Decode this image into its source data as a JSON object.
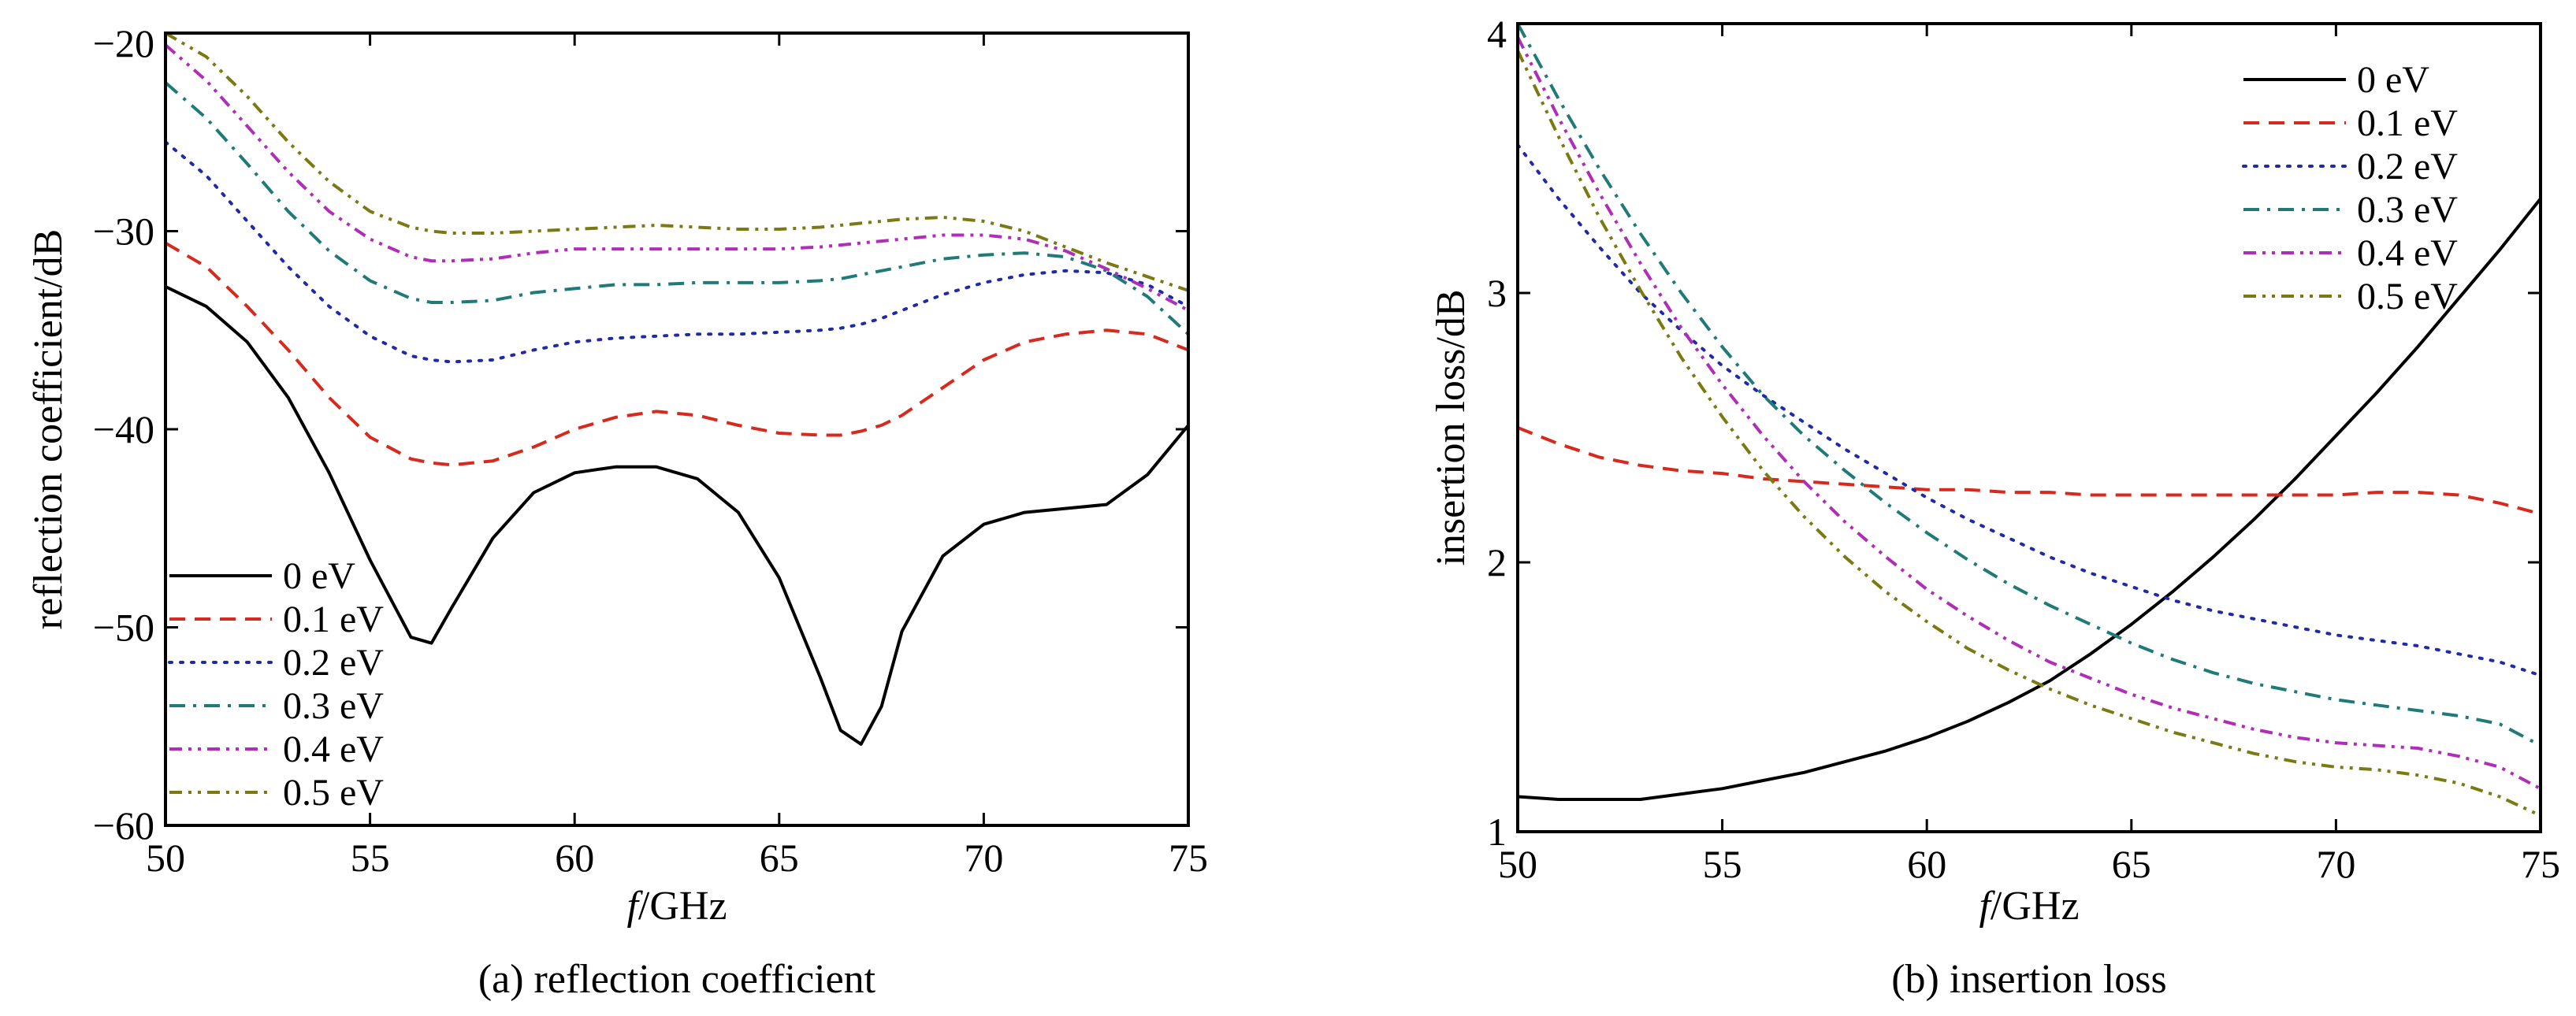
{
  "chart_data": [
    {
      "type": "line",
      "caption": "(a) reflection coefficient",
      "xlabel_italic": "f",
      "xlabel_rest": "/GHz",
      "ylabel": "reflection coefficient/dB",
      "xlim": [
        50,
        75
      ],
      "ylim": [
        -60,
        -20
      ],
      "xticks": [
        50,
        55,
        60,
        65,
        70,
        75
      ],
      "xtick_labels": [
        "50",
        "55",
        "60",
        "65",
        "70",
        "75"
      ],
      "yticks": [
        -60,
        -50,
        -40,
        -30,
        -20
      ],
      "ytick_labels": [
        "−60",
        "−50",
        "−40",
        "−30",
        "−20"
      ],
      "grid": false,
      "legend_position": "bottom-left",
      "x": [
        50,
        51,
        52,
        53,
        54,
        55,
        56,
        56.5,
        57,
        58,
        59,
        60,
        61,
        62,
        63,
        64,
        65,
        66,
        66.5,
        67,
        67.5,
        68,
        69,
        70,
        71,
        72,
        73,
        74,
        75
      ],
      "series": [
        {
          "name": "0 eV",
          "color": "#000000",
          "dash": "solid",
          "values": [
            -32.8,
            -33.8,
            -35.6,
            -38.4,
            -42.2,
            -46.6,
            -50.5,
            -50.8,
            -49.0,
            -45.5,
            -43.2,
            -42.2,
            -41.9,
            -41.9,
            -42.5,
            -44.2,
            -47.5,
            -52.5,
            -55.2,
            -55.9,
            -54.0,
            -50.2,
            -46.4,
            -44.8,
            -44.2,
            -44.0,
            -43.8,
            -42.3,
            -39.8
          ]
        },
        {
          "name": "0.1 eV",
          "color": "#d62a1e",
          "dash": "dashed",
          "values": [
            -30.6,
            -31.8,
            -33.8,
            -36.0,
            -38.4,
            -40.4,
            -41.5,
            -41.7,
            -41.8,
            -41.6,
            -40.9,
            -40.0,
            -39.4,
            -39.1,
            -39.3,
            -39.8,
            -40.2,
            -40.3,
            -40.3,
            -40.1,
            -39.8,
            -39.3,
            -37.9,
            -36.5,
            -35.6,
            -35.2,
            -35.0,
            -35.2,
            -36.0
          ]
        },
        {
          "name": "0.2 eV",
          "color": "#1f2aa8",
          "dash": "dotted",
          "values": [
            -25.5,
            -27.2,
            -29.5,
            -31.8,
            -33.8,
            -35.3,
            -36.3,
            -36.5,
            -36.6,
            -36.5,
            -36.0,
            -35.6,
            -35.4,
            -35.3,
            -35.2,
            -35.2,
            -35.1,
            -35.0,
            -34.9,
            -34.7,
            -34.4,
            -34.0,
            -33.2,
            -32.6,
            -32.2,
            -32.0,
            -32.1,
            -32.7,
            -33.8
          ]
        },
        {
          "name": "0.3 eV",
          "color": "#1f7a78",
          "dash": "dashdot",
          "values": [
            -22.5,
            -24.3,
            -26.6,
            -29.0,
            -31.0,
            -32.5,
            -33.4,
            -33.6,
            -33.6,
            -33.5,
            -33.1,
            -32.9,
            -32.7,
            -32.7,
            -32.6,
            -32.6,
            -32.6,
            -32.5,
            -32.4,
            -32.2,
            -32.0,
            -31.8,
            -31.4,
            -31.2,
            -31.1,
            -31.3,
            -32.0,
            -33.3,
            -35.2
          ]
        },
        {
          "name": "0.4 eV",
          "color": "#b02db8",
          "dash": "dashdotdot",
          "values": [
            -20.6,
            -22.4,
            -24.7,
            -27.0,
            -29.0,
            -30.4,
            -31.3,
            -31.5,
            -31.5,
            -31.4,
            -31.1,
            -30.9,
            -30.9,
            -30.9,
            -30.9,
            -30.9,
            -30.9,
            -30.8,
            -30.7,
            -30.6,
            -30.5,
            -30.4,
            -30.2,
            -30.2,
            -30.4,
            -31.0,
            -31.9,
            -32.9,
            -34.0
          ]
        },
        {
          "name": "0.5 eV",
          "color": "#7a7a12",
          "dash": "dashdotdot",
          "values": [
            -20.0,
            -21.2,
            -23.2,
            -25.5,
            -27.5,
            -29.0,
            -29.8,
            -30.0,
            -30.1,
            -30.1,
            -30.0,
            -29.9,
            -29.8,
            -29.7,
            -29.8,
            -29.9,
            -29.9,
            -29.8,
            -29.7,
            -29.6,
            -29.5,
            -29.4,
            -29.3,
            -29.5,
            -30.0,
            -30.8,
            -31.6,
            -32.3,
            -33.0
          ]
        }
      ]
    },
    {
      "type": "line",
      "caption": "(b) insertion loss",
      "xlabel_italic": "f",
      "xlabel_rest": "/GHz",
      "ylabel": "insertion loss/dB",
      "xlim": [
        50,
        75
      ],
      "ylim": [
        1,
        4
      ],
      "xticks": [
        50,
        55,
        60,
        65,
        70,
        75
      ],
      "xtick_labels": [
        "50",
        "55",
        "60",
        "65",
        "70",
        "75"
      ],
      "yticks": [
        1,
        2,
        3,
        4
      ],
      "ytick_labels": [
        "1",
        "2",
        "3",
        "4"
      ],
      "grid": false,
      "legend_position": "top-right",
      "x": [
        50,
        51,
        52,
        53,
        54,
        55,
        56,
        57,
        58,
        59,
        60,
        61,
        62,
        63,
        64,
        65,
        66,
        67,
        68,
        69,
        70,
        71,
        72,
        73,
        74,
        75
      ],
      "series": [
        {
          "name": "0 eV",
          "color": "#000000",
          "dash": "solid",
          "values": [
            1.13,
            1.12,
            1.12,
            1.12,
            1.14,
            1.16,
            1.19,
            1.22,
            1.26,
            1.3,
            1.35,
            1.41,
            1.48,
            1.56,
            1.66,
            1.77,
            1.89,
            2.02,
            2.16,
            2.31,
            2.47,
            2.63,
            2.8,
            2.98,
            3.16,
            3.35
          ]
        },
        {
          "name": "0.1 eV",
          "color": "#d62a1e",
          "dash": "dashed",
          "values": [
            2.5,
            2.44,
            2.39,
            2.36,
            2.34,
            2.33,
            2.31,
            2.3,
            2.29,
            2.28,
            2.27,
            2.27,
            2.26,
            2.26,
            2.25,
            2.25,
            2.25,
            2.25,
            2.25,
            2.25,
            2.25,
            2.26,
            2.26,
            2.25,
            2.22,
            2.18
          ]
        },
        {
          "name": "0.2 eV",
          "color": "#1f2aa8",
          "dash": "dotted",
          "values": [
            3.55,
            3.35,
            3.17,
            3.0,
            2.86,
            2.73,
            2.62,
            2.52,
            2.42,
            2.33,
            2.24,
            2.16,
            2.09,
            2.02,
            1.96,
            1.91,
            1.86,
            1.82,
            1.79,
            1.76,
            1.73,
            1.71,
            1.69,
            1.66,
            1.63,
            1.58
          ]
        },
        {
          "name": "0.3 eV",
          "color": "#1f7a78",
          "dash": "dashdot",
          "values": [
            4.0,
            3.72,
            3.46,
            3.22,
            3.0,
            2.8,
            2.62,
            2.47,
            2.34,
            2.22,
            2.11,
            2.01,
            1.92,
            1.84,
            1.77,
            1.7,
            1.64,
            1.59,
            1.55,
            1.52,
            1.49,
            1.47,
            1.45,
            1.43,
            1.4,
            1.32
          ]
        },
        {
          "name": "0.4 eV",
          "color": "#b02db8",
          "dash": "dashdotdot",
          "values": [
            3.95,
            3.65,
            3.37,
            3.11,
            2.87,
            2.66,
            2.47,
            2.3,
            2.15,
            2.02,
            1.9,
            1.8,
            1.71,
            1.63,
            1.57,
            1.51,
            1.46,
            1.42,
            1.38,
            1.35,
            1.33,
            1.32,
            1.31,
            1.28,
            1.24,
            1.16
          ]
        },
        {
          "name": "0.5 eV",
          "color": "#7a7a12",
          "dash": "dashdotdot",
          "values": [
            3.9,
            3.58,
            3.28,
            3.01,
            2.76,
            2.54,
            2.34,
            2.17,
            2.02,
            1.89,
            1.78,
            1.68,
            1.6,
            1.53,
            1.47,
            1.42,
            1.37,
            1.33,
            1.29,
            1.26,
            1.24,
            1.23,
            1.21,
            1.18,
            1.13,
            1.06
          ]
        }
      ]
    }
  ]
}
